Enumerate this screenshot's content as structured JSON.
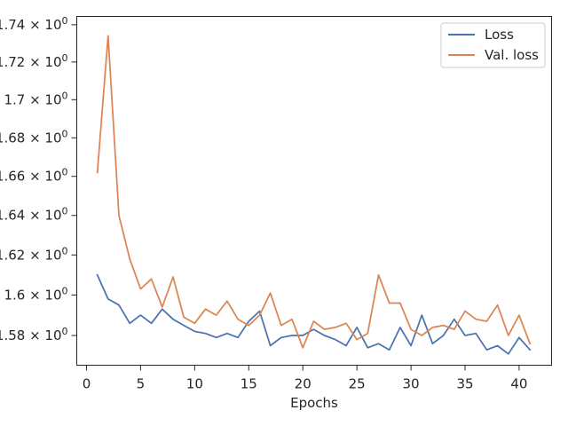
{
  "chart_data": {
    "type": "line",
    "title": "",
    "xlabel": "Epochs",
    "ylabel": "",
    "yscale": "log",
    "xlim": [
      -0.9,
      43.0
    ],
    "ylim": [
      1.5655,
      1.7445
    ],
    "grid": false,
    "legend_position": "top-right",
    "x_ticks": [
      {
        "value": 0,
        "label": "0"
      },
      {
        "value": 5,
        "label": "5"
      },
      {
        "value": 10,
        "label": "10"
      },
      {
        "value": 15,
        "label": "15"
      },
      {
        "value": 20,
        "label": "20"
      },
      {
        "value": 25,
        "label": "25"
      },
      {
        "value": 30,
        "label": "30"
      },
      {
        "value": 35,
        "label": "35"
      },
      {
        "value": 40,
        "label": "40"
      }
    ],
    "y_ticks": [
      {
        "value": 1.58,
        "mantissa": "1.58",
        "base": "10",
        "exp": "0"
      },
      {
        "value": 1.6,
        "mantissa": "1.6",
        "base": "10",
        "exp": "0"
      },
      {
        "value": 1.62,
        "mantissa": "1.62",
        "base": "10",
        "exp": "0"
      },
      {
        "value": 1.64,
        "mantissa": "1.64",
        "base": "10",
        "exp": "0"
      },
      {
        "value": 1.66,
        "mantissa": "1.66",
        "base": "10",
        "exp": "0"
      },
      {
        "value": 1.68,
        "mantissa": "1.68",
        "base": "10",
        "exp": "0"
      },
      {
        "value": 1.7,
        "mantissa": "1.7",
        "base": "10",
        "exp": "0"
      },
      {
        "value": 1.72,
        "mantissa": "1.72",
        "base": "10",
        "exp": "0"
      },
      {
        "value": 1.74,
        "mantissa": "1.74",
        "base": "10",
        "exp": "0"
      }
    ],
    "x": [
      1,
      2,
      3,
      4,
      5,
      6,
      7,
      8,
      9,
      10,
      11,
      12,
      13,
      14,
      15,
      16,
      17,
      18,
      19,
      20,
      21,
      22,
      23,
      24,
      25,
      26,
      27,
      28,
      29,
      30,
      31,
      32,
      33,
      34,
      35,
      36,
      37,
      38,
      39,
      40,
      41
    ],
    "series": [
      {
        "name": "Loss",
        "color": "#4c72b0",
        "values": [
          1.61,
          1.598,
          1.595,
          1.586,
          1.59,
          1.586,
          1.593,
          1.588,
          1.585,
          1.582,
          1.581,
          1.579,
          1.581,
          1.579,
          1.587,
          1.592,
          1.575,
          1.579,
          1.58,
          1.58,
          1.583,
          1.58,
          1.578,
          1.575,
          1.584,
          1.574,
          1.576,
          1.573,
          1.584,
          1.575,
          1.59,
          1.576,
          1.58,
          1.588,
          1.58,
          1.581,
          1.573,
          1.575,
          1.571,
          1.579,
          1.573
        ]
      },
      {
        "name": "Val. loss",
        "color": "#dd8452",
        "values": [
          1.662,
          1.734,
          1.64,
          1.618,
          1.603,
          1.608,
          1.594,
          1.609,
          1.589,
          1.586,
          1.593,
          1.59,
          1.597,
          1.588,
          1.585,
          1.59,
          1.601,
          1.585,
          1.588,
          1.574,
          1.587,
          1.583,
          1.584,
          1.586,
          1.578,
          1.581,
          1.61,
          1.596,
          1.596,
          1.583,
          1.58,
          1.584,
          1.585,
          1.583,
          1.592,
          1.588,
          1.587,
          1.595,
          1.58,
          1.59,
          1.576
        ]
      }
    ]
  }
}
